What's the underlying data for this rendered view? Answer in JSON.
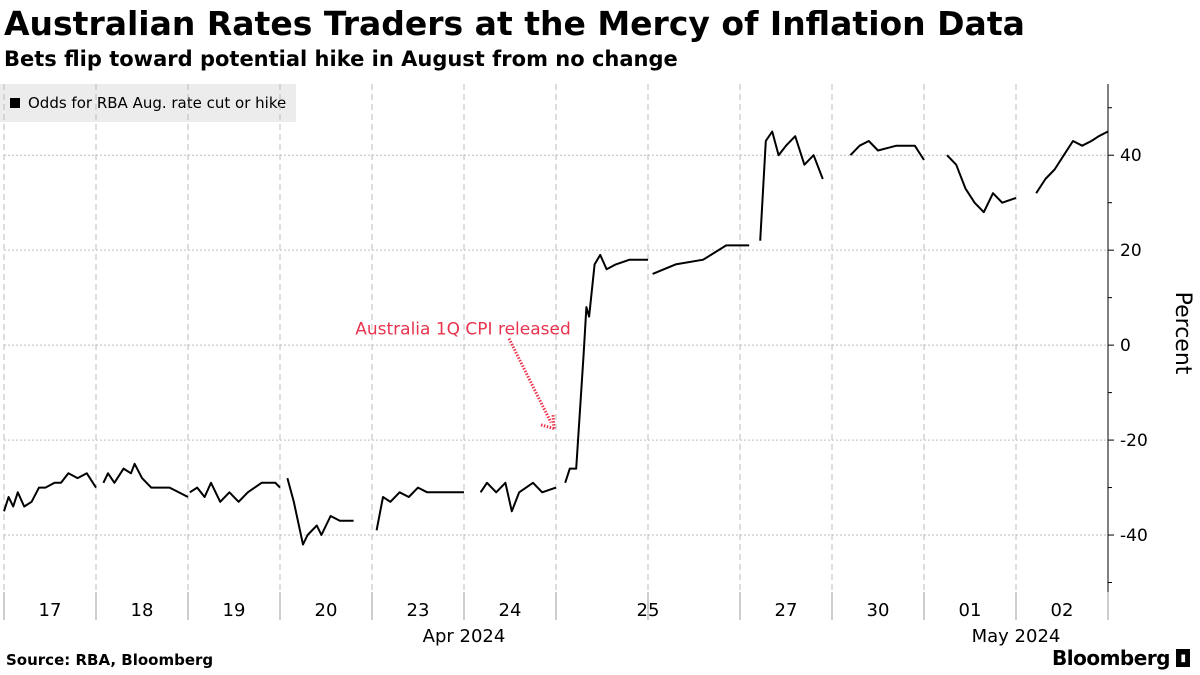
{
  "header": {
    "title": "Australian Rates Traders at the Mercy of Inflation Data",
    "subtitle": "Bets flip toward potential hike in August from no change"
  },
  "footer": {
    "source": "Source: RBA, Bloomberg",
    "brand": "Bloomberg"
  },
  "colors": {
    "line": "#000000",
    "grid": "#bdbdbd",
    "annotation": "#e8344e",
    "legend_bg": "#ececec"
  },
  "chart_data": {
    "type": "line",
    "title": "Australian Rates Traders at the Mercy of Inflation Data",
    "ylabel": "Percent",
    "ylim": [
      -52,
      55
    ],
    "yticks": [
      40,
      20,
      0,
      -20,
      -40
    ],
    "grid": true,
    "legend": {
      "label": "Odds for RBA Aug. rate cut or hike",
      "placement": "top-left"
    },
    "x_unit": "trading-day index",
    "day_ticks": [
      {
        "label": "17",
        "x": 0.5
      },
      {
        "label": "18",
        "x": 1.5
      },
      {
        "label": "19",
        "x": 2.5
      },
      {
        "label": "20",
        "x": 3.5
      },
      {
        "label": "23",
        "x": 4.5
      },
      {
        "label": "24",
        "x": 5.5
      },
      {
        "label": "25",
        "x": 7.0
      },
      {
        "label": "27",
        "x": 8.5
      },
      {
        "label": "30",
        "x": 9.5
      },
      {
        "label": "01",
        "x": 10.5
      },
      {
        "label": "02",
        "x": 11.5
      }
    ],
    "day_separators": [
      0,
      1,
      2,
      3,
      4,
      5,
      6,
      7,
      8,
      9,
      10,
      11,
      12
    ],
    "month_labels": [
      {
        "label": "Apr 2024",
        "x": 5.0
      },
      {
        "label": "May 2024",
        "x": 11.0
      }
    ],
    "annotation": {
      "text": "Australia 1Q CPI released",
      "target": {
        "x": 6.0,
        "y": -18
      }
    },
    "series": [
      {
        "name": "Odds for RBA Aug. rate cut or hike",
        "segments": [
          [
            [
              0.0,
              -35
            ],
            [
              0.05,
              -32
            ],
            [
              0.1,
              -34
            ],
            [
              0.15,
              -31
            ],
            [
              0.22,
              -34
            ],
            [
              0.3,
              -33
            ],
            [
              0.38,
              -30
            ],
            [
              0.45,
              -30
            ],
            [
              0.55,
              -29
            ],
            [
              0.62,
              -29
            ],
            [
              0.7,
              -27
            ],
            [
              0.8,
              -28
            ],
            [
              0.9,
              -27
            ],
            [
              1.0,
              -30
            ]
          ],
          [
            [
              1.08,
              -29
            ],
            [
              1.13,
              -27
            ],
            [
              1.2,
              -29
            ],
            [
              1.3,
              -26
            ],
            [
              1.38,
              -27
            ],
            [
              1.42,
              -25
            ],
            [
              1.5,
              -28
            ],
            [
              1.6,
              -30
            ],
            [
              1.8,
              -30
            ],
            [
              2.0,
              -32
            ]
          ],
          [
            [
              2.02,
              -31
            ],
            [
              2.1,
              -30
            ],
            [
              2.18,
              -32
            ],
            [
              2.25,
              -29
            ],
            [
              2.35,
              -33
            ],
            [
              2.45,
              -31
            ],
            [
              2.55,
              -33
            ],
            [
              2.65,
              -31
            ],
            [
              2.8,
              -29
            ],
            [
              2.95,
              -29
            ],
            [
              3.0,
              -30
            ]
          ],
          [
            [
              3.08,
              -28
            ],
            [
              3.15,
              -33
            ],
            [
              3.25,
              -42
            ],
            [
              3.3,
              -40
            ],
            [
              3.4,
              -38
            ],
            [
              3.45,
              -40
            ],
            [
              3.55,
              -36
            ],
            [
              3.65,
              -37
            ],
            [
              3.8,
              -37
            ]
          ],
          [
            [
              4.05,
              -39
            ],
            [
              4.12,
              -32
            ],
            [
              4.2,
              -33
            ],
            [
              4.3,
              -31
            ],
            [
              4.4,
              -32
            ],
            [
              4.5,
              -30
            ],
            [
              4.6,
              -31
            ],
            [
              4.8,
              -31
            ],
            [
              5.0,
              -31
            ]
          ],
          [
            [
              5.18,
              -31
            ],
            [
              5.25,
              -29
            ],
            [
              5.35,
              -31
            ],
            [
              5.45,
              -29
            ],
            [
              5.52,
              -35
            ],
            [
              5.6,
              -31
            ],
            [
              5.75,
              -29
            ],
            [
              5.85,
              -31
            ],
            [
              6.0,
              -30
            ]
          ],
          [
            [
              6.1,
              -29
            ],
            [
              6.15,
              -26
            ],
            [
              6.22,
              -26
            ],
            [
              6.3,
              -2
            ],
            [
              6.33,
              8
            ],
            [
              6.36,
              6
            ],
            [
              6.42,
              17
            ],
            [
              6.48,
              19
            ],
            [
              6.55,
              16
            ],
            [
              6.65,
              17
            ],
            [
              6.8,
              18
            ],
            [
              7.0,
              18
            ]
          ],
          [
            [
              7.05,
              15
            ],
            [
              7.3,
              17
            ],
            [
              7.6,
              18
            ],
            [
              7.85,
              21
            ],
            [
              8.1,
              21
            ]
          ],
          [
            [
              8.22,
              22
            ],
            [
              8.28,
              43
            ],
            [
              8.35,
              45
            ],
            [
              8.42,
              40
            ],
            [
              8.5,
              42
            ],
            [
              8.6,
              44
            ],
            [
              8.7,
              38
            ],
            [
              8.8,
              40
            ],
            [
              8.9,
              35
            ]
          ],
          [
            [
              9.2,
              40
            ],
            [
              9.3,
              42
            ],
            [
              9.4,
              43
            ],
            [
              9.5,
              41
            ],
            [
              9.7,
              42
            ],
            [
              9.9,
              42
            ],
            [
              10.0,
              39
            ]
          ],
          [
            [
              10.25,
              40
            ],
            [
              10.35,
              38
            ],
            [
              10.45,
              33
            ],
            [
              10.55,
              30
            ],
            [
              10.65,
              28
            ],
            [
              10.75,
              32
            ],
            [
              10.85,
              30
            ],
            [
              11.0,
              31
            ]
          ],
          [
            [
              11.22,
              32
            ],
            [
              11.32,
              35
            ],
            [
              11.42,
              37
            ],
            [
              11.52,
              40
            ],
            [
              11.62,
              43
            ],
            [
              11.72,
              42
            ],
            [
              11.82,
              43
            ],
            [
              11.9,
              44
            ],
            [
              12.0,
              45
            ]
          ]
        ]
      }
    ]
  }
}
